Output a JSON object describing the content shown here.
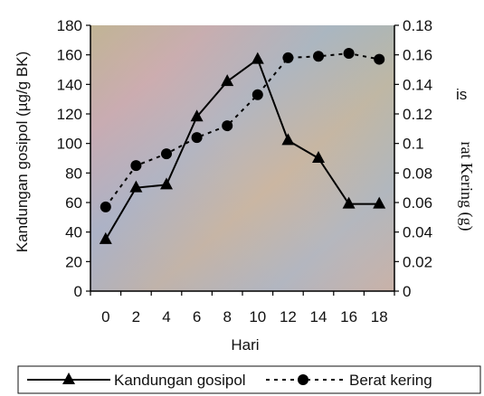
{
  "chart_data": {
    "type": "line",
    "xlabel": "Hari",
    "ylabel_left": "Kandungan gosipol (µg/g BK)",
    "ylabel_right": "rat Kering (g)",
    "right_label_fragment": "is",
    "x": [
      0,
      2,
      4,
      6,
      8,
      10,
      12,
      14,
      16,
      18
    ],
    "x_tick_labels": [
      "0",
      "2",
      "4",
      "6",
      "8",
      "10",
      "12",
      "14",
      "16",
      "18"
    ],
    "ylim_left": [
      0,
      180
    ],
    "ylim_right": [
      0,
      0.18
    ],
    "y_left_tick_labels": [
      "0",
      "20",
      "40",
      "60",
      "80",
      "100",
      "120",
      "140",
      "160",
      "180"
    ],
    "y_right_tick_labels": [
      "0",
      "0.02",
      "0.04",
      "0.06",
      "0.08",
      "0.1",
      "0.12",
      "0.14",
      "0.16",
      "0.18"
    ],
    "series": [
      {
        "name": "Kandungan gosipol",
        "axis": "left",
        "marker": "triangle",
        "line": "solid",
        "values": [
          35,
          70,
          72,
          118,
          142,
          157,
          102,
          90,
          59,
          59
        ]
      },
      {
        "name": "Berat kering",
        "axis": "right",
        "marker": "circle",
        "line": "dotted",
        "values": [
          0.057,
          0.085,
          0.093,
          0.104,
          0.112,
          0.133,
          0.158,
          0.159,
          0.161,
          0.157
        ]
      }
    ],
    "legend_position": "bottom",
    "grid": false
  }
}
